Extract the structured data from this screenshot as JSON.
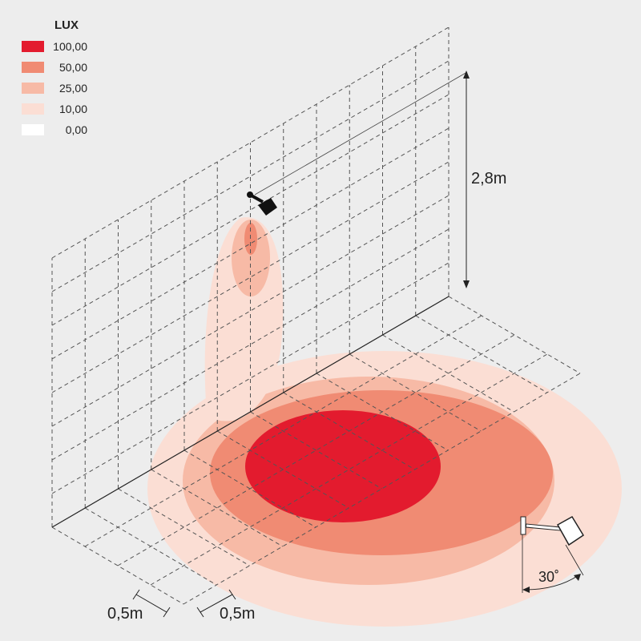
{
  "legend": {
    "title": "LUX",
    "entries": [
      {
        "label": "100,00",
        "color": "#e31b2e"
      },
      {
        "label": "50,00",
        "color": "#f08b73"
      },
      {
        "label": "25,00",
        "color": "#f7baa6"
      },
      {
        "label": "10,00",
        "color": "#fbded4"
      },
      {
        "label": "0,00",
        "color": "#ffffff"
      }
    ]
  },
  "dimensions": {
    "height": "2,8m",
    "grid_x": "0,5m",
    "grid_y": "0,5m",
    "angle": "30˚"
  }
}
